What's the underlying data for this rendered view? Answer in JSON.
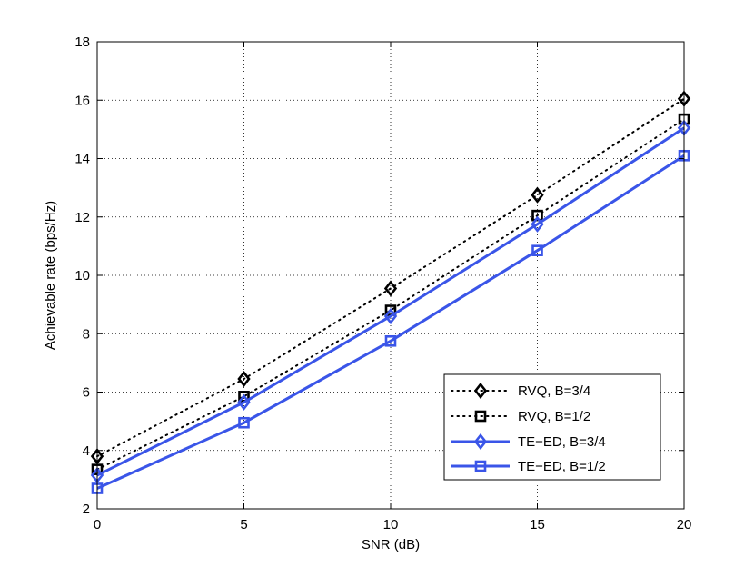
{
  "chart_data": {
    "type": "line",
    "title": "",
    "xlabel": "SNR (dB)",
    "ylabel": "Achievable rate (bps/Hz)",
    "xlim": [
      0,
      20
    ],
    "ylim": [
      2,
      18
    ],
    "x_ticks": [
      0,
      5,
      10,
      15,
      20
    ],
    "y_ticks": [
      2,
      4,
      6,
      8,
      10,
      12,
      14,
      16,
      18
    ],
    "grid": true,
    "legend_position": "bottom-right",
    "x": [
      0,
      5,
      10,
      15,
      20
    ],
    "series": [
      {
        "name": "RVQ, B=3/4",
        "values": [
          3.8,
          6.45,
          9.55,
          12.75,
          16.05
        ],
        "color": "#000000",
        "line": "dotted",
        "marker": "diamond"
      },
      {
        "name": "RVQ, B=1/2",
        "values": [
          3.35,
          5.85,
          8.8,
          12.05,
          15.35
        ],
        "color": "#000000",
        "line": "dotted",
        "marker": "square"
      },
      {
        "name": "TE−ED, B=3/4",
        "values": [
          3.15,
          5.65,
          8.6,
          11.75,
          15.05
        ],
        "color": "#3a55e8",
        "line": "solid",
        "marker": "diamond"
      },
      {
        "name": "TE−ED, B=1/2",
        "values": [
          2.7,
          4.95,
          7.75,
          10.85,
          14.1
        ],
        "color": "#3a55e8",
        "line": "solid",
        "marker": "square"
      }
    ]
  }
}
